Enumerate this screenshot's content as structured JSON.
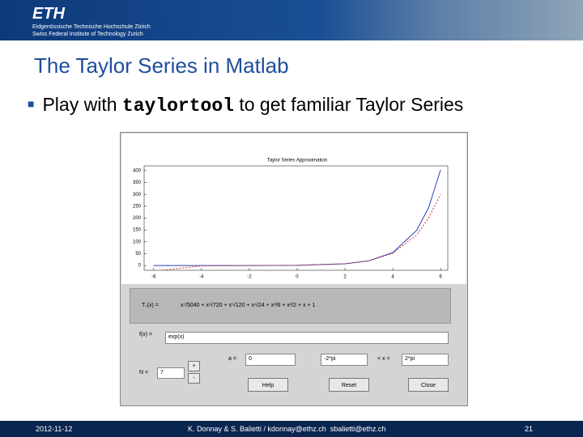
{
  "header": {
    "logo": "ETH",
    "line1": "Eidgenössische Technische Hochschule Zürich",
    "line2": "Swiss Federal Institute of Technology Zurich"
  },
  "slide": {
    "title": "The Taylor Series in Matlab",
    "bullet": {
      "before": "Play with",
      "code": "taylortool",
      "after": "to get familiar Taylor Series"
    }
  },
  "screenshot": {
    "chart_data": {
      "type": "line",
      "title": "Taylor Series Approximation",
      "x": [
        -6,
        -4,
        -2,
        0,
        2,
        3,
        4,
        5,
        5.5,
        6
      ],
      "series": [
        {
          "color": "#2a3fc0",
          "values": [
            0.0025,
            0.018,
            0.135,
            1,
            7.39,
            20.1,
            54.6,
            148.4,
            244.7,
            403.4
          ]
        },
        {
          "color": "#d03030",
          "values": [
            -24.5,
            -1.09,
            0.131,
            1,
            7.38,
            19.85,
            51.8,
            128.6,
            201,
            300.1
          ]
        }
      ],
      "xlim": [
        -6.4,
        6.3
      ],
      "ylim": [
        -20,
        420
      ],
      "xticks": [
        -6,
        -4,
        -2,
        0,
        2,
        4,
        6
      ],
      "yticks": [
        0,
        50,
        100,
        150,
        200,
        250,
        300,
        350,
        400
      ]
    },
    "equation_label": "T₇(x) =",
    "equation": "x⁷/5040 + x⁶/720 + x⁵/120 + x⁴/24 + x³/6 + x²/2 + x + 1",
    "controls": {
      "f_label": "f(x) =",
      "f_value": "exp(x)",
      "n_label": "N =",
      "n_value": "7",
      "plus": "+",
      "minus": "-",
      "a_label": "a =",
      "a_value": "0",
      "x_min": "-2*pi",
      "x_range_label": "< x <",
      "x_max": "2*pi",
      "help": "Help",
      "reset": "Reset",
      "close": "Close"
    }
  },
  "footer": {
    "date": "2012-11-12",
    "authors": "K. Donnay & S. Balietti / kdonnay@ethz.ch  sbalietti@ethz.ch",
    "page": "21"
  }
}
